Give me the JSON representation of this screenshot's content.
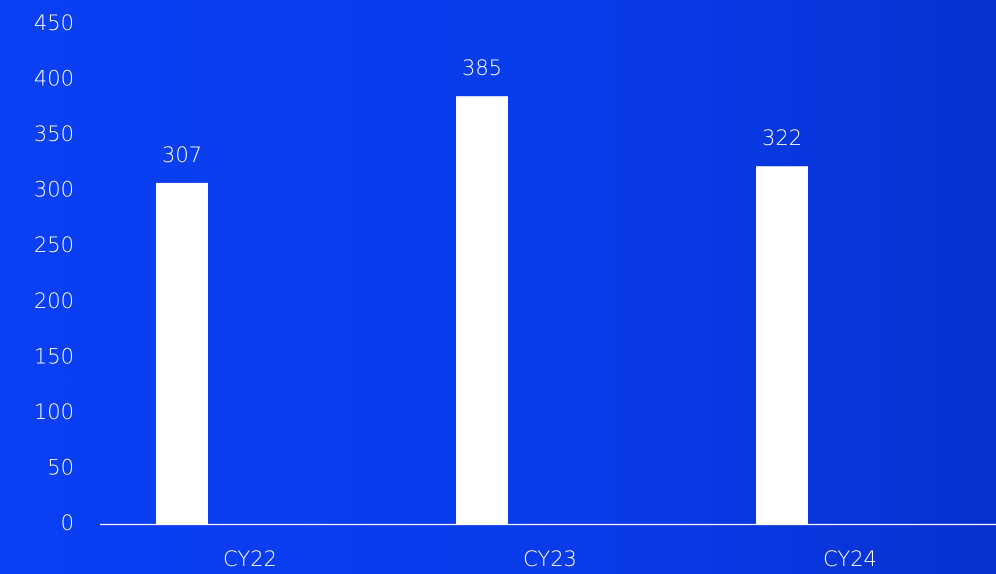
{
  "chart_data": {
    "type": "bar",
    "categories": [
      "CY22",
      "CY23",
      "CY24"
    ],
    "values": [
      307,
      385,
      322
    ],
    "color": "#ffffff",
    "ylim": [
      0,
      450
    ],
    "yticks": [
      0,
      50,
      100,
      150,
      200,
      250,
      300,
      350,
      400,
      450
    ],
    "grid": false
  }
}
